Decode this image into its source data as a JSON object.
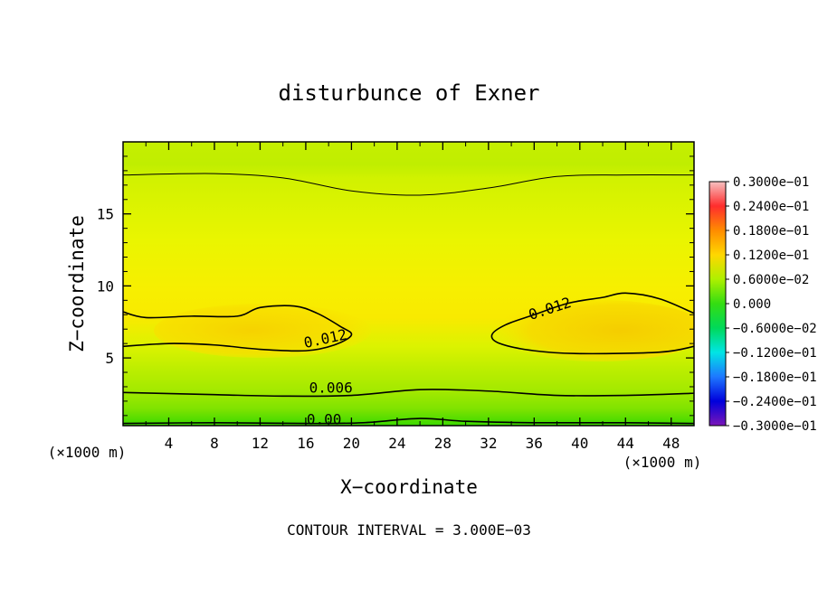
{
  "chart_data": {
    "type": "contour",
    "title": "disturbunce of Exner",
    "xlabel": "X−coordinate",
    "ylabel": "Z−coordinate",
    "x_unit": "(×1000 m)",
    "xlim": [
      0,
      50
    ],
    "ylim": [
      0.3,
      20
    ],
    "x_ticks": [
      4,
      8,
      12,
      16,
      20,
      24,
      28,
      32,
      36,
      40,
      44,
      48
    ],
    "y_ticks": [
      5,
      10,
      15
    ],
    "contour_interval_text": "CONTOUR INTERVAL = 3.000E−03",
    "contour_labels": [
      {
        "text": "0.012",
        "x": 17.8,
        "z": 6.0
      },
      {
        "text": "0.012",
        "x": 37.5,
        "z": 8.1
      },
      {
        "text": "0.006",
        "x": 18.2,
        "z": 2.6
      },
      {
        "text": "0.00",
        "x": 17.6,
        "z": 0.4
      }
    ],
    "contour_lines": [
      {
        "level": "0.000",
        "points": [
          [
            0,
            0.45
          ],
          [
            8,
            0.5
          ],
          [
            16,
            0.45
          ],
          [
            21,
            0.5
          ],
          [
            26,
            0.8
          ],
          [
            30,
            0.6
          ],
          [
            36,
            0.5
          ],
          [
            44,
            0.5
          ],
          [
            50,
            0.45
          ]
        ]
      },
      {
        "level": "0.006",
        "points": [
          [
            0,
            2.6
          ],
          [
            8,
            2.45
          ],
          [
            14,
            2.35
          ],
          [
            20,
            2.4
          ],
          [
            26,
            2.8
          ],
          [
            32,
            2.7
          ],
          [
            38,
            2.4
          ],
          [
            44,
            2.4
          ],
          [
            50,
            2.55
          ]
        ]
      },
      {
        "level": "0.012",
        "points": [
          [
            0,
            5.8
          ],
          [
            4,
            6.0
          ],
          [
            8,
            5.9
          ],
          [
            12,
            5.6
          ],
          [
            16,
            5.5
          ],
          [
            18.5,
            5.9
          ],
          [
            20,
            6.6
          ],
          [
            19,
            7.2
          ],
          [
            17,
            8.1
          ],
          [
            15,
            8.6
          ],
          [
            12,
            8.5
          ],
          [
            10,
            7.9
          ],
          [
            6,
            7.9
          ],
          [
            2,
            7.8
          ],
          [
            0,
            8.2
          ]
        ]
      },
      {
        "level": "0.012",
        "points": [
          [
            50,
            5.8
          ],
          [
            47,
            5.4
          ],
          [
            40,
            5.3
          ],
          [
            36,
            5.5
          ],
          [
            33,
            6.0
          ],
          [
            32.3,
            6.6
          ],
          [
            33.5,
            7.3
          ],
          [
            36,
            8.0
          ],
          [
            39,
            8.8
          ],
          [
            42,
            9.2
          ],
          [
            44,
            9.5
          ],
          [
            47,
            9.1
          ],
          [
            50,
            8.1
          ]
        ]
      },
      {
        "level": "0.009",
        "points": [
          [
            0,
            17.7
          ],
          [
            8,
            17.8
          ],
          [
            14,
            17.5
          ],
          [
            20,
            16.6
          ],
          [
            26,
            16.3
          ],
          [
            32,
            16.8
          ],
          [
            38,
            17.6
          ],
          [
            44,
            17.7
          ],
          [
            50,
            17.7
          ]
        ]
      }
    ],
    "colorbar": {
      "labels": [
        "0.3000e−01",
        "0.2400e−01",
        "0.1800e−01",
        "0.1200e−01",
        "0.6000e−02",
        "0.000",
        "−0.6000e−02",
        "−0.1200e−01",
        "−0.1800e−01",
        "−0.2400e−01",
        "−0.3000e−01"
      ],
      "colors": [
        "#f6c1c1",
        "#ff2d2d",
        "#ff8c00",
        "#ffd700",
        "#aef000",
        "#34dd12",
        "#00d95a",
        "#00e5e5",
        "#1e78ff",
        "#0000dc",
        "#7b16b8"
      ]
    }
  }
}
